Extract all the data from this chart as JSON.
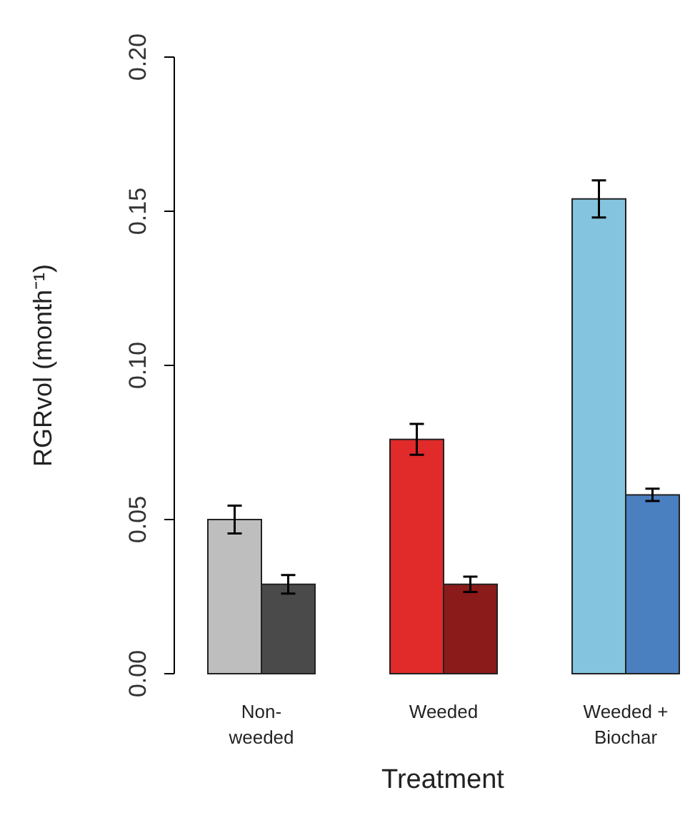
{
  "chart_data": {
    "type": "bar",
    "xlabel": "Treatment",
    "ylabel": "RGRvol (month⁻¹)",
    "categories": [
      "Non-\nweeded",
      "Weeded",
      "Weeded +\nBiochar"
    ],
    "series": [
      {
        "colors": [
          "#bebebe",
          "#e12a2a",
          "#84c4de"
        ],
        "values": [
          0.05,
          0.076,
          0.154
        ],
        "errors": [
          0.0045,
          0.005,
          0.006
        ]
      },
      {
        "colors": [
          "#4a4a4a",
          "#8b1a1a",
          "#4a7fc0"
        ],
        "values": [
          0.029,
          0.029,
          0.058
        ],
        "errors": [
          0.003,
          0.0025,
          0.002
        ]
      }
    ],
    "ylim": [
      0,
      0.2
    ],
    "yticks": [
      {
        "value": 0,
        "label": "0.00"
      },
      {
        "value": 0.05,
        "label": "0.05"
      },
      {
        "value": 0.1,
        "label": "0.10"
      },
      {
        "value": 0.15,
        "label": "0.15"
      },
      {
        "value": 0.2,
        "label": "0.20"
      }
    ],
    "grid": false
  }
}
